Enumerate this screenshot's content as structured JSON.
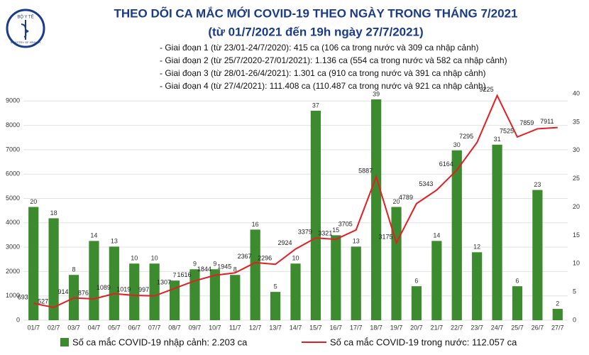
{
  "logo": {
    "top": "BỘ Y TẾ",
    "bottom": "MINISTRY OF HEALTH"
  },
  "chart_data": {
    "type": "bar-line",
    "title": "THEO DÕI CA MẮC MỚI COVID-19 THEO NGÀY TRONG THÁNG 7/2021",
    "subtitle": "(từ 01/7/2021 đến 19h ngày 27/7/2021)",
    "annotations": [
      "- Giai đoạn 1 (từ 23/01-24/7/2020): 415 ca (106 ca trong nước và 309 ca nhập cảnh)",
      "- Giai đoạn 2 (từ 25/7/2020-27/01/2021): 1.136 ca (554 ca trong nước và 582 ca nhập cảnh)",
      "- Giai đoạn 3 (từ 28/01-26/4/2021): 1.301 ca (910 ca trong nước và 391 ca nhập cảnh)",
      "- Giai đoạn 4 (từ 27/4/2021): 111.408 ca (110.487 ca trong nước và 921 ca nhập cảnh)"
    ],
    "categories": [
      "01/7",
      "02/7",
      "03/7",
      "04/7",
      "05/7",
      "06/7",
      "07/7",
      "08/7",
      "09/7",
      "10/7",
      "11/7",
      "12/7",
      "13/7",
      "14/7",
      "15/7",
      "16/7",
      "17/7",
      "18/7",
      "19/7",
      "20/7",
      "21/7",
      "22/7",
      "23/7",
      "24/7",
      "25/7",
      "26/7",
      "27/7"
    ],
    "series": [
      {
        "name": "Số ca mắc COVID-19 nhập cảnh: 2.203 ca",
        "color": "#3d8b2f",
        "type": "bar",
        "axis": "y2",
        "values": [
          20,
          18,
          8,
          14,
          13,
          10,
          10,
          7,
          9,
          9,
          8,
          16,
          5,
          10,
          37,
          15,
          13,
          39,
          20,
          6,
          14,
          30,
          12,
          31,
          6,
          23,
          2
        ]
      },
      {
        "name": "Số ca mắc COVID-19 trong nước: 112.057 ca",
        "color": "#e31e24",
        "type": "line",
        "axis": "y",
        "values": [
          693,
          527,
          914,
          876,
          1089,
          1019,
          997,
          1307,
          1616,
          1844,
          1945,
          2367,
          2296,
          2924,
          3379,
          3321,
          3705,
          5887,
          3175,
          4789,
          5343,
          6164,
          7295,
          9225,
          7525,
          7859,
          7911
        ]
      }
    ],
    "ylim": [
      0,
      9300
    ],
    "yticks": [
      0,
      1000,
      2000,
      3000,
      4000,
      5000,
      6000,
      7000,
      8000,
      9000
    ],
    "y2lim": [
      0,
      40
    ],
    "y2ticks": [
      0,
      5,
      10,
      15,
      20,
      25,
      30,
      35,
      40
    ],
    "grid": true
  }
}
